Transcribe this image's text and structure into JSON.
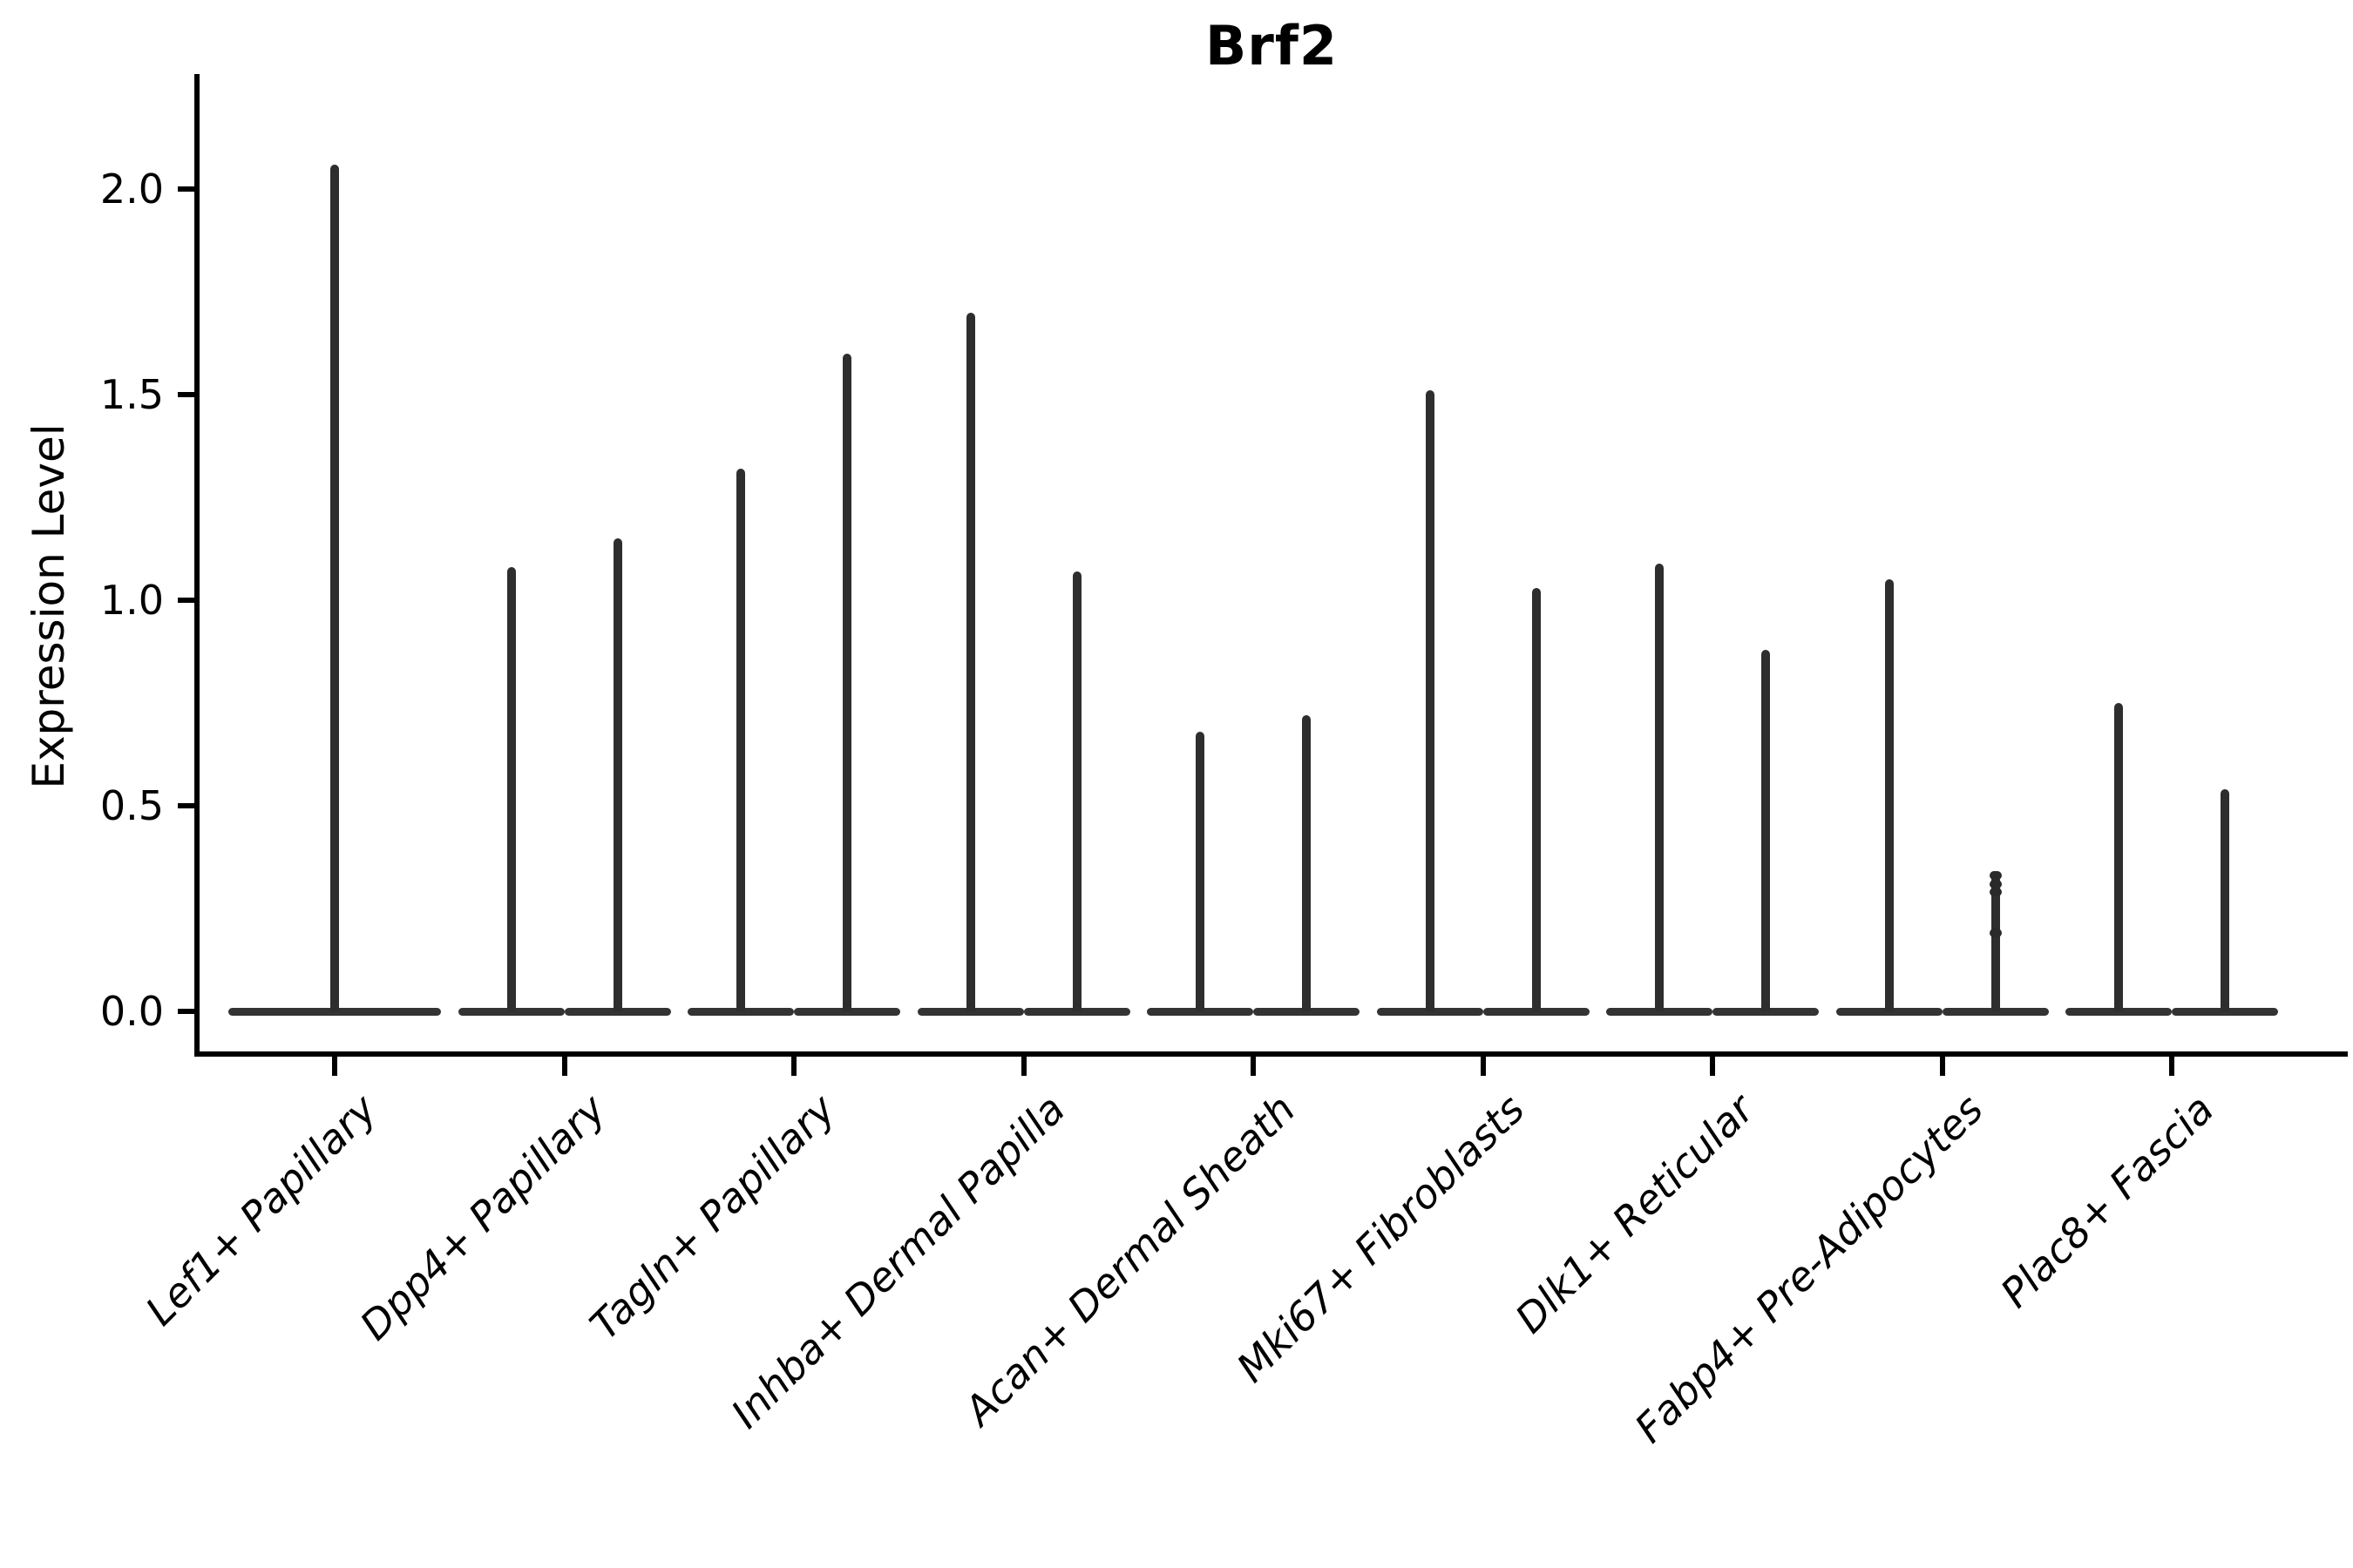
{
  "title": "Brf2",
  "axes": {
    "ylabel": "Expression Level",
    "ytick_labels": [
      "2.0",
      "1.5",
      "1.0",
      "0.5",
      "0.0"
    ]
  },
  "chart_data": {
    "type": "violin",
    "title": "Brf2",
    "xlabel": "",
    "ylabel": "Expression Level",
    "yticks": [
      0.0,
      0.5,
      1.0,
      1.5,
      2.0
    ],
    "ylim": [
      -0.08,
      2.28
    ],
    "grid": false,
    "legend": "none",
    "description": "Single-cell expression violin plot. Each category shows one or two extremely narrow violins: nearly all cells have expression 0 (flat wide base at y=0) with a thin spike reaching the maximum expression value.",
    "categories": [
      "Lef1+ Papillary",
      "Dpp4+ Papillary",
      "Tagln+ Papillary",
      "Inhba+ Dermal Papilla",
      "Acan+ Dermal Sheath",
      "Mki67+ Fibroblasts",
      "Dlk1+ Reticular",
      "Fabp4+ Pre-Adipocytes",
      "Plac8+ Fascia"
    ],
    "violins": [
      {
        "category": "Lef1+ Papillary",
        "split": [
          {
            "max": 2.06,
            "offset": 0,
            "base_width": 244
          }
        ]
      },
      {
        "category": "Dpp4+ Papillary",
        "split": [
          {
            "max": 1.08,
            "offset": -61,
            "base_width": 122
          },
          {
            "max": 1.15,
            "offset": 61,
            "base_width": 122
          }
        ]
      },
      {
        "category": "Tagln+ Papillary",
        "split": [
          {
            "max": 1.32,
            "offset": -61,
            "base_width": 122
          },
          {
            "max": 1.6,
            "offset": 61,
            "base_width": 122
          }
        ]
      },
      {
        "category": "Inhba+ Dermal Papilla",
        "split": [
          {
            "max": 1.7,
            "offset": -61,
            "base_width": 122
          },
          {
            "max": 1.07,
            "offset": 61,
            "base_width": 122
          }
        ]
      },
      {
        "category": "Acan+ Dermal Sheath",
        "split": [
          {
            "max": 0.68,
            "offset": -61,
            "base_width": 122
          },
          {
            "max": 0.72,
            "offset": 61,
            "base_width": 122
          }
        ]
      },
      {
        "category": "Mki67+ Fibroblasts",
        "split": [
          {
            "max": 1.51,
            "offset": -61,
            "base_width": 122
          },
          {
            "max": 1.03,
            "offset": 61,
            "base_width": 122
          }
        ]
      },
      {
        "category": "Dlk1+ Reticular",
        "split": [
          {
            "max": 1.09,
            "offset": -61,
            "base_width": 122
          },
          {
            "max": 0.88,
            "offset": 61,
            "base_width": 122
          }
        ]
      },
      {
        "category": "Fabp4+ Pre-Adipocytes",
        "split": [
          {
            "max": 1.05,
            "offset": -61,
            "base_width": 122
          },
          {
            "max": 0.33,
            "offset": 61,
            "base_width": 122
          }
        ]
      },
      {
        "category": "Plac8+ Fascia",
        "split": [
          {
            "max": 0.75,
            "offset": -61,
            "base_width": 122
          },
          {
            "max": 0.54,
            "offset": 61,
            "base_width": 122
          }
        ]
      }
    ],
    "points": [
      {
        "category": "Fabp4+ Pre-Adipocytes",
        "violin_index": 1,
        "values": [
          0.33,
          0.31,
          0.29,
          0.19
        ]
      }
    ],
    "colors": {
      "violin": "#2e2e2e",
      "violin_base": "#333333",
      "axis": "#000000",
      "text": "#000000"
    }
  }
}
